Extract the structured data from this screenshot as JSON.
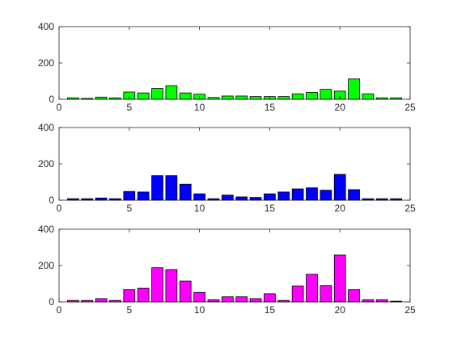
{
  "figure": {
    "background": "#ffffff",
    "axis_color": "#262626"
  },
  "chart_data": [
    {
      "type": "bar",
      "x": [
        1,
        2,
        3,
        4,
        5,
        6,
        7,
        8,
        9,
        10,
        11,
        12,
        13,
        14,
        15,
        16,
        17,
        18,
        19,
        20,
        21,
        22,
        23,
        24
      ],
      "values": [
        8,
        5,
        12,
        8,
        40,
        35,
        60,
        75,
        35,
        28,
        10,
        18,
        18,
        15,
        15,
        15,
        30,
        38,
        55,
        45,
        112,
        30,
        8,
        8
      ],
      "xlim": [
        0,
        25
      ],
      "ylim": [
        0,
        400
      ],
      "xticks": [
        0,
        5,
        10,
        15,
        20,
        25
      ],
      "yticks": [
        0,
        200,
        400
      ],
      "color": "#00ff00",
      "grid": false
    },
    {
      "type": "bar",
      "x": [
        1,
        2,
        3,
        4,
        5,
        6,
        7,
        8,
        9,
        10,
        11,
        12,
        13,
        14,
        15,
        16,
        17,
        18,
        19,
        20,
        21,
        22,
        23,
        24
      ],
      "values": [
        8,
        8,
        12,
        8,
        48,
        45,
        135,
        135,
        88,
        35,
        8,
        28,
        18,
        15,
        35,
        45,
        62,
        68,
        55,
        142,
        58,
        8,
        8,
        8
      ],
      "xlim": [
        0,
        25
      ],
      "ylim": [
        0,
        400
      ],
      "xticks": [
        0,
        5,
        10,
        15,
        20,
        25
      ],
      "yticks": [
        0,
        200,
        400
      ],
      "color": "#0000ff",
      "grid": false
    },
    {
      "type": "bar",
      "x": [
        1,
        2,
        3,
        4,
        5,
        6,
        7,
        8,
        9,
        10,
        11,
        12,
        13,
        14,
        15,
        16,
        17,
        18,
        19,
        20,
        21,
        22,
        23,
        24
      ],
      "values": [
        8,
        8,
        18,
        8,
        68,
        75,
        188,
        178,
        115,
        52,
        12,
        28,
        28,
        18,
        45,
        8,
        88,
        152,
        90,
        258,
        68,
        12,
        12,
        4
      ],
      "xlim": [
        0,
        25
      ],
      "ylim": [
        0,
        400
      ],
      "xticks": [
        0,
        5,
        10,
        15,
        20,
        25
      ],
      "yticks": [
        0,
        200,
        400
      ],
      "color": "#ff00ff",
      "grid": false
    }
  ]
}
